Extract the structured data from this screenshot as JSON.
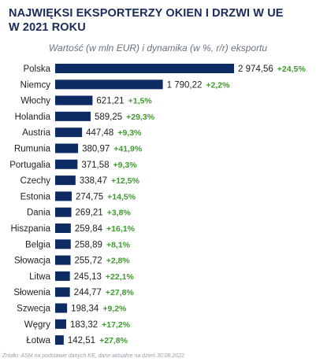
{
  "header": {
    "title_line1": "NAJWIĘKSI EKSPORTERZY OKIEN I DRZWI W UE",
    "title_line2": "W 2021 ROKU",
    "subtitle": "Wartość (w mln EUR) i dynamika (w %, r/r) eksportu"
  },
  "footer": {
    "source": "Źródło: ASM na podstawie danych KE, dane aktualne na dzień 30.08.2022"
  },
  "colors": {
    "bar": "#0e2c63",
    "growth": "#3f9a2f",
    "label": "#222222",
    "title": "#1a2b5a"
  },
  "chart_data": {
    "type": "bar",
    "orientation": "horizontal",
    "title": "NAJWIĘKSI EKSPORTERZY OKIEN I DRZWI W UE W 2021 ROKU",
    "subtitle": "Wartość (w mln EUR) i dynamika (w %, r/r) eksportu",
    "categories": [
      "Polska",
      "Niemcy",
      "Włochy",
      "Holandia",
      "Austria",
      "Rumunia",
      "Portugalia",
      "Czechy",
      "Estonia",
      "Dania",
      "Hiszpania",
      "Belgia",
      "Słowacja",
      "Litwa",
      "Słowenia",
      "Szwecja",
      "Węgry",
      "Łotwa"
    ],
    "values": [
      2974.56,
      1790.22,
      621.21,
      589.25,
      447.48,
      380.97,
      371.58,
      338.47,
      274.75,
      269.21,
      259.84,
      258.89,
      255.72,
      245.13,
      244.77,
      198.34,
      183.32,
      142.51
    ],
    "value_labels": [
      "2 974,56",
      "1 790,22",
      "621,21",
      "589,25",
      "447,48",
      "380,97",
      "371,58",
      "338,47",
      "274,75",
      "269,21",
      "259,84",
      "258,89",
      "255,72",
      "245,13",
      "244,77",
      "198,34",
      "183,32",
      "142,51"
    ],
    "growth_labels": [
      "+24,5%",
      "+2,2%",
      "+1,5%",
      "+29,3%",
      "+9,3%",
      "+41,9%",
      "+9,3%",
      "+12,5%",
      "+14,5%",
      "+3,8%",
      "+16,1%",
      "+8,1%",
      "+2,8%",
      "+22,1%",
      "+27,8%",
      "+9,2%",
      "+17,2%",
      "+27,8%"
    ],
    "xlim": [
      0,
      2974.56
    ],
    "grid": false,
    "legend": "none"
  }
}
